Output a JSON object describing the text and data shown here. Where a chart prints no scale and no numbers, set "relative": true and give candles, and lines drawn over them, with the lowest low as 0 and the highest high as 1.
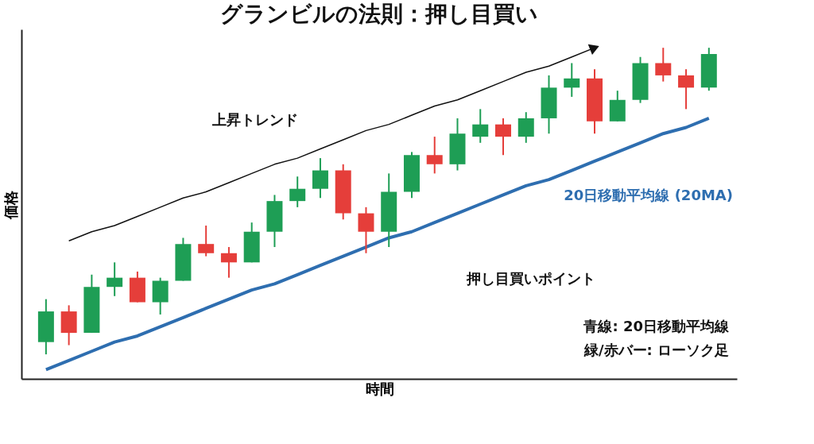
{
  "chart_data": {
    "type": "candlestick",
    "title": "グランビルの法則：押し目買い",
    "xlabel": "時間",
    "ylabel": "価格",
    "relative": true,
    "tick_labels": false,
    "grid": false,
    "categories": [
      null,
      null,
      null,
      null,
      null,
      null,
      null,
      null,
      null,
      null,
      null,
      null,
      null,
      null,
      null,
      null,
      null,
      null,
      null,
      null,
      null,
      null,
      null,
      null,
      null,
      null,
      null,
      null,
      null,
      null
    ],
    "ohlc": [
      [
        0.04,
        0.18,
        0.0,
        0.14
      ],
      [
        0.14,
        0.16,
        0.03,
        0.07
      ],
      [
        0.07,
        0.26,
        0.07,
        0.22
      ],
      [
        0.22,
        0.3,
        0.19,
        0.25
      ],
      [
        0.25,
        0.27,
        0.17,
        0.17
      ],
      [
        0.17,
        0.25,
        0.13,
        0.24
      ],
      [
        0.24,
        0.38,
        0.24,
        0.36
      ],
      [
        0.36,
        0.42,
        0.32,
        0.33
      ],
      [
        0.33,
        0.35,
        0.25,
        0.3
      ],
      [
        0.3,
        0.43,
        0.3,
        0.4
      ],
      [
        0.4,
        0.52,
        0.35,
        0.5
      ],
      [
        0.5,
        0.58,
        0.48,
        0.54
      ],
      [
        0.54,
        0.64,
        0.51,
        0.6
      ],
      [
        0.6,
        0.62,
        0.44,
        0.46
      ],
      [
        0.46,
        0.48,
        0.33,
        0.4
      ],
      [
        0.4,
        0.59,
        0.35,
        0.53
      ],
      [
        0.53,
        0.66,
        0.51,
        0.65
      ],
      [
        0.65,
        0.71,
        0.59,
        0.62
      ],
      [
        0.62,
        0.77,
        0.6,
        0.72
      ],
      [
        0.71,
        0.8,
        0.69,
        0.75
      ],
      [
        0.75,
        0.77,
        0.65,
        0.71
      ],
      [
        0.71,
        0.79,
        0.69,
        0.77
      ],
      [
        0.77,
        0.91,
        0.72,
        0.87
      ],
      [
        0.87,
        0.95,
        0.84,
        0.9
      ],
      [
        0.9,
        0.93,
        0.72,
        0.76
      ],
      [
        0.76,
        0.86,
        0.76,
        0.83
      ],
      [
        0.83,
        0.97,
        0.82,
        0.95
      ],
      [
        0.95,
        1.0,
        0.89,
        0.91
      ],
      [
        0.91,
        0.93,
        0.8,
        0.87
      ],
      [
        0.87,
        1.0,
        0.86,
        0.98
      ]
    ],
    "colors": [
      "#1e9e55",
      "#e53e3a",
      "#1e9e55",
      "#1e9e55",
      "#e53e3a",
      "#1e9e55",
      "#1e9e55",
      "#e53e3a",
      "#e53e3a",
      "#1e9e55",
      "#1e9e55",
      "#1e9e55",
      "#1e9e55",
      "#e53e3a",
      "#e53e3a",
      "#1e9e55",
      "#1e9e55",
      "#e53e3a",
      "#1e9e55",
      "#1e9e55",
      "#e53e3a",
      "#1e9e55",
      "#1e9e55",
      "#1e9e55",
      "#e53e3a",
      "#1e9e55",
      "#1e9e55",
      "#e53e3a",
      "#e53e3a",
      "#1e9e55"
    ],
    "series": [
      {
        "type": "line",
        "name": "20日移動平均線 (20MA)",
        "color": "#2e6eb0",
        "values": [
          -0.05,
          -0.02,
          0.01,
          0.04,
          0.06,
          0.09,
          0.12,
          0.15,
          0.18,
          0.21,
          0.23,
          0.26,
          0.29,
          0.32,
          0.35,
          0.38,
          0.4,
          0.43,
          0.46,
          0.49,
          0.52,
          0.55,
          0.57,
          0.6,
          0.63,
          0.66,
          0.69,
          0.72,
          0.74,
          0.77
        ]
      },
      {
        "type": "line",
        "color": "#111111",
        "values": [
          null,
          0.37,
          0.4,
          0.42,
          0.45,
          0.48,
          0.51,
          0.53,
          0.56,
          0.59,
          0.62,
          0.64,
          0.67,
          0.7,
          0.73,
          0.75,
          0.78,
          0.81,
          0.83,
          0.86,
          0.89,
          0.92,
          0.94,
          0.97,
          1.0,
          null,
          null,
          null,
          null,
          null
        ]
      }
    ],
    "annotations": [
      "上昇トレンド",
      "押し目買いポイント",
      "青線: 20日移動平均線",
      "緑/赤バー: ローソク足"
    ]
  }
}
